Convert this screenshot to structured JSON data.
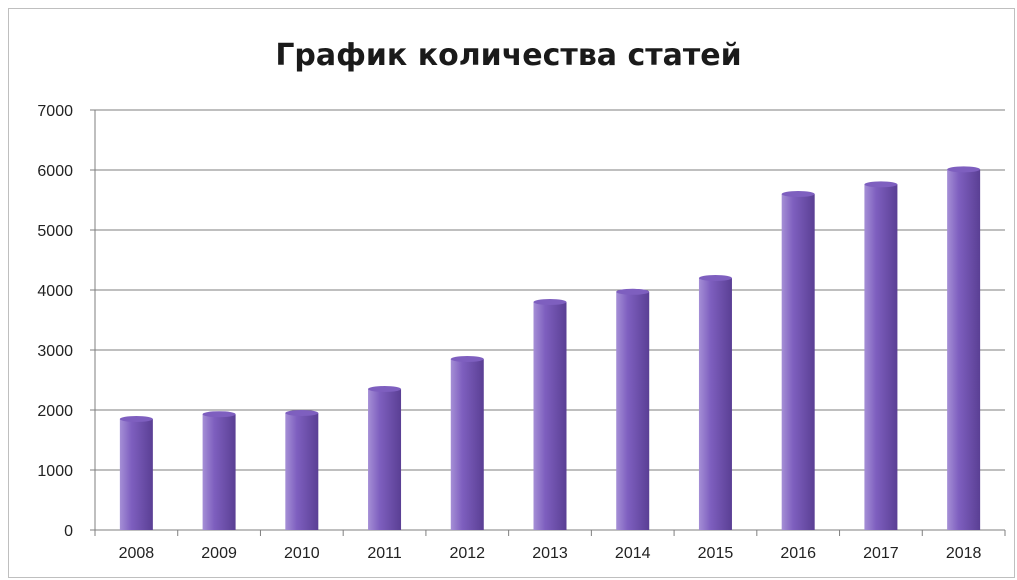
{
  "chart_data": {
    "type": "bar",
    "title": "График количества статей",
    "categories": [
      "2008",
      "2009",
      "2010",
      "2011",
      "2012",
      "2013",
      "2014",
      "2015",
      "2016",
      "2017",
      "2018"
    ],
    "series": [
      {
        "values": [
          1850,
          1930,
          1950,
          2350,
          2850,
          3800,
          3970,
          4200,
          5600,
          5760,
          6010
        ]
      }
    ],
    "ylim": [
      0,
      7000
    ],
    "yticks": [
      "0",
      "1000",
      "2000",
      "3000",
      "4000",
      "5000",
      "6000",
      "7000"
    ],
    "grid": true,
    "legend": "none",
    "colors": {
      "bar_light": "#a58fd6",
      "bar_mid": "#7e5fbf",
      "bar_dark": "#5a3f94",
      "grid": "#7f7f7f"
    }
  }
}
